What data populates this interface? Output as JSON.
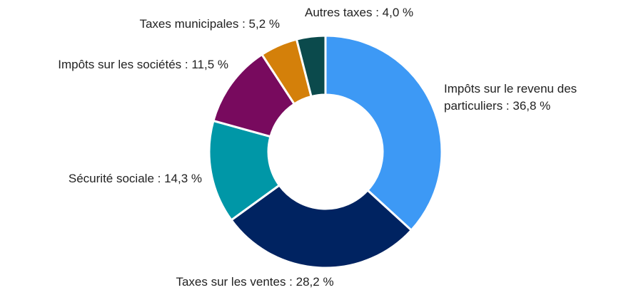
{
  "chart_data": {
    "type": "donut",
    "value_labels": [
      "Impôts sur le revenu des particuliers : 36,8 %",
      "Taxes sur les ventes : 28,2 %",
      "Sécurité sociale : 14,3 %",
      "Impôts sur les sociétés : 11,5 %",
      "Taxes municipales : 5,2 %",
      "Autres taxes : 4,0 %"
    ],
    "values": [
      36.8,
      28.2,
      14.3,
      11.5,
      5.2,
      4.0
    ],
    "colors": [
      "#3d99f5",
      "#002361",
      "#0097a7",
      "#780a5e",
      "#d4800a",
      "#0b4a4c"
    ]
  }
}
